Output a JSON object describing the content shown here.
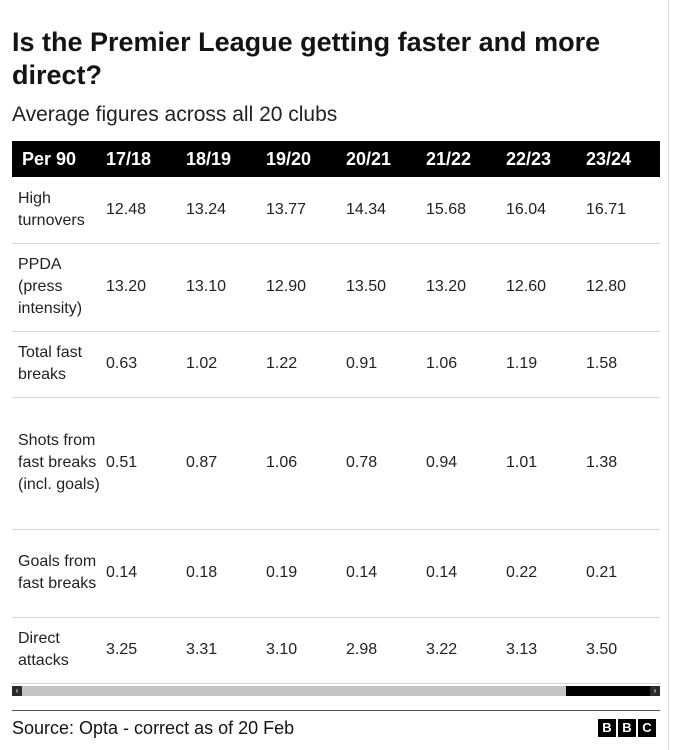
{
  "title": "Is the Premier League getting faster and more direct?",
  "subtitle": "Average figures across all 20 clubs",
  "table": {
    "header": [
      "Per 90",
      "17/18",
      "18/19",
      "19/20",
      "20/21",
      "21/22",
      "22/23",
      "23/24"
    ],
    "rows": [
      {
        "label": "High turnovers",
        "values": [
          "12.48",
          "13.24",
          "13.77",
          "14.34",
          "15.68",
          "16.04",
          "16.71"
        ]
      },
      {
        "label": "PPDA (press intensity)",
        "values": [
          "13.20",
          "13.10",
          "12.90",
          "13.50",
          "13.20",
          "12.60",
          "12.80"
        ]
      },
      {
        "label": "Total fast breaks",
        "values": [
          "0.63",
          "1.02",
          "1.22",
          "0.91",
          "1.06",
          "1.19",
          "1.58"
        ]
      },
      {
        "label": "Shots from fast breaks (incl. goals)",
        "values": [
          "0.51",
          "0.87",
          "1.06",
          "0.78",
          "0.94",
          "1.01",
          "1.38"
        ]
      },
      {
        "label": "Goals from fast breaks",
        "values": [
          "0.14",
          "0.18",
          "0.19",
          "0.14",
          "0.14",
          "0.22",
          "0.21"
        ]
      },
      {
        "label": "Direct attacks",
        "values": [
          "3.25",
          "3.31",
          "3.10",
          "2.98",
          "3.22",
          "3.13",
          "3.50"
        ]
      }
    ]
  },
  "scrollbar": {
    "left_arrow": "‹",
    "right_arrow": "›",
    "position": 0.87
  },
  "footer": {
    "source": "Source: Opta - correct as of 20 Feb",
    "logo_letters": [
      "B",
      "B",
      "C"
    ]
  },
  "chart_data": {
    "type": "table",
    "title": "Is the Premier League getting faster and more direct?",
    "subtitle": "Average figures across all 20 clubs",
    "columns": [
      "Per 90",
      "17/18",
      "18/19",
      "19/20",
      "20/21",
      "21/22",
      "22/23",
      "23/24"
    ],
    "rows": [
      [
        "High turnovers",
        12.48,
        13.24,
        13.77,
        14.34,
        15.68,
        16.04,
        16.71
      ],
      [
        "PPDA (press intensity)",
        13.2,
        13.1,
        12.9,
        13.5,
        13.2,
        12.6,
        12.8
      ],
      [
        "Total fast breaks",
        0.63,
        1.02,
        1.22,
        0.91,
        1.06,
        1.19,
        1.58
      ],
      [
        "Shots from fast breaks (incl. goals)",
        0.51,
        0.87,
        1.06,
        0.78,
        0.94,
        1.01,
        1.38
      ],
      [
        "Goals from fast breaks",
        0.14,
        0.18,
        0.19,
        0.14,
        0.14,
        0.22,
        0.21
      ],
      [
        "Direct attacks",
        3.25,
        3.31,
        3.1,
        2.98,
        3.22,
        3.13,
        3.5
      ]
    ]
  }
}
